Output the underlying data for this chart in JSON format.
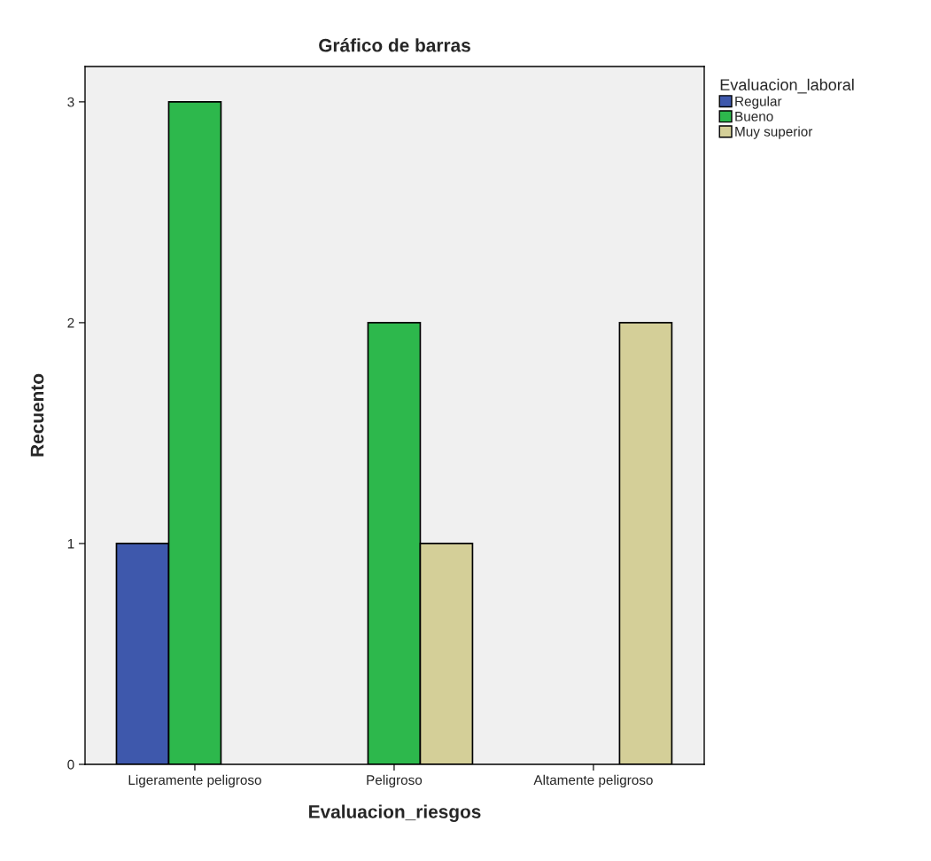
{
  "chart_data": {
    "type": "bar",
    "title": "Gráfico de barras",
    "xlabel": "Evaluacion_riesgos",
    "ylabel": "Recuento",
    "legend_title": "Evaluacion_laboral",
    "categories": [
      "Ligeramente peligroso",
      "Peligroso",
      "Altamente peligroso"
    ],
    "series": [
      {
        "name": "Regular",
        "color": "#3e58ac",
        "values": [
          1,
          null,
          null
        ]
      },
      {
        "name": "Bueno",
        "color": "#2db84c",
        "values": [
          3,
          2,
          null
        ]
      },
      {
        "name": "Muy superior",
        "color": "#d4cf98",
        "values": [
          null,
          1,
          2
        ]
      }
    ],
    "ylim": [
      0,
      3.16
    ],
    "yticks": [
      0,
      1,
      2,
      3
    ],
    "grid": false,
    "legend": "top right"
  }
}
